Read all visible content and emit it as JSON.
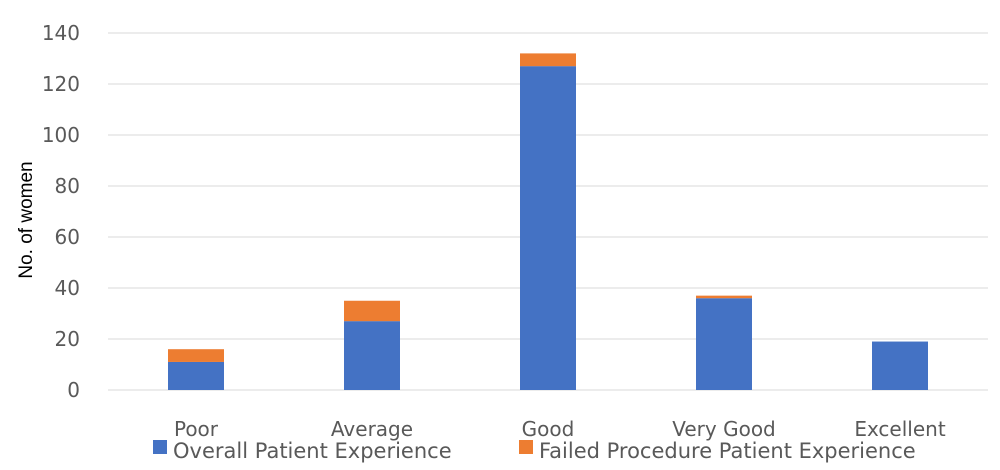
{
  "chart_data": {
    "type": "bar",
    "stacked": true,
    "categories": [
      "Poor",
      "Average",
      "Good",
      "Very Good",
      "Excellent"
    ],
    "series": [
      {
        "name": "Overall Patient Experience",
        "color": "#4472C4",
        "values": [
          11,
          27,
          127,
          36,
          19
        ]
      },
      {
        "name": "Failed Procedure Patient Experience",
        "color": "#ED7D31",
        "values": [
          5,
          8,
          5,
          1,
          0
        ]
      }
    ],
    "title": "",
    "xlabel": "",
    "ylabel": "No. of women",
    "ylim": [
      0,
      140
    ],
    "yticks": [
      0,
      20,
      40,
      60,
      80,
      100,
      120,
      140
    ],
    "grid": true,
    "legend_position": "bottom"
  }
}
